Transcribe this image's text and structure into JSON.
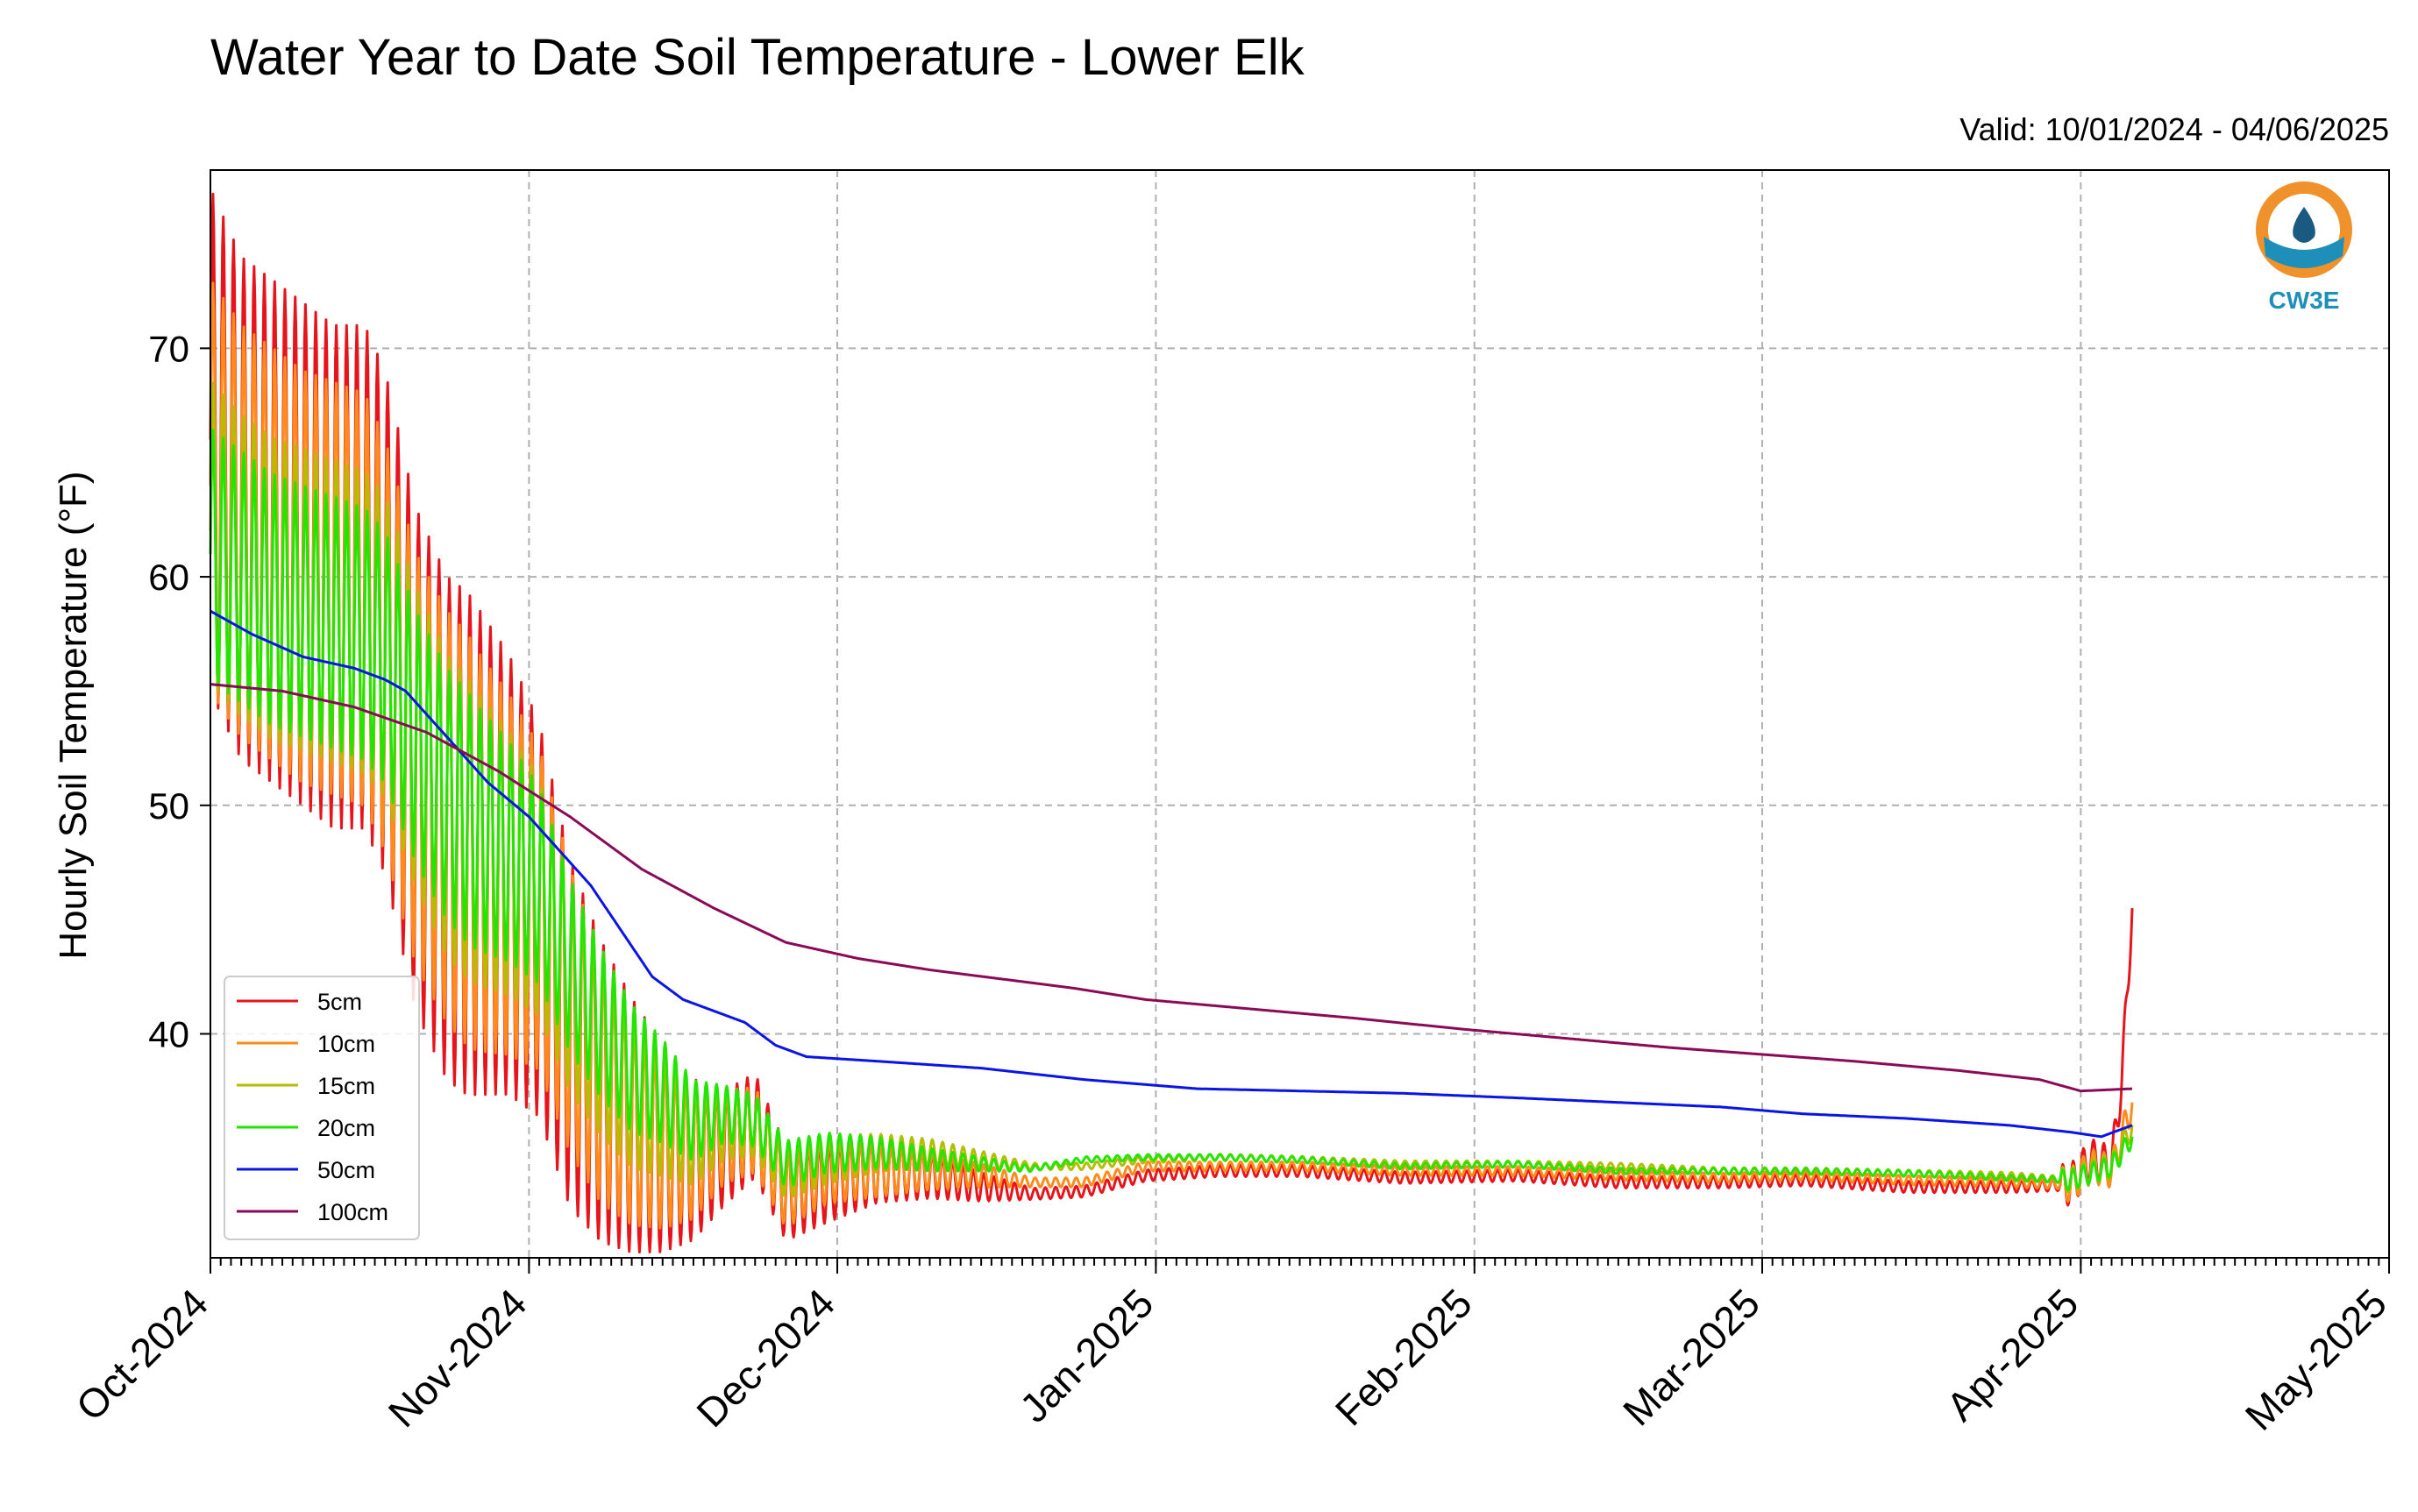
{
  "chart_data": {
    "type": "line",
    "title": "Water Year to Date Soil Temperature - Lower Elk",
    "subtitle": "Valid: 10/01/2024 - 04/06/2025",
    "ylabel": "Hourly Soil Temperature (°F)",
    "xlabel": "",
    "ylim": [
      30.2,
      77.8
    ],
    "yticks": [
      40,
      50,
      60,
      70
    ],
    "xlim": [
      "2024-10-01",
      "2025-05-01"
    ],
    "xticks": [
      "2024-10-01",
      "2024-11-01",
      "2024-12-01",
      "2025-01-01",
      "2025-02-01",
      "2025-03-01",
      "2025-04-01",
      "2025-05-01"
    ],
    "xtick_labels": [
      "Oct-2024",
      "Nov-2024",
      "Dec-2024",
      "Jan-2025",
      "Feb-2025",
      "Mar-2025",
      "Apr-2025",
      "May-2025"
    ],
    "grid": true,
    "legend_position": "lower-left",
    "logo_text": "CW3E",
    "logo_colors": {
      "orange": "#f0922b",
      "blue": "#1d8fb8",
      "dark": "#1a5a80"
    },
    "series": [
      {
        "name": "5cm",
        "color": "#e8141b",
        "x": [
          "2024-10-01",
          "2024-10-04",
          "2024-10-07",
          "2024-10-10",
          "2024-10-13",
          "2024-10-16",
          "2024-10-18",
          "2024-10-21",
          "2024-10-24",
          "2024-10-27",
          "2024-10-30",
          "2024-11-02",
          "2024-11-05",
          "2024-11-08",
          "2024-11-11",
          "2024-11-14",
          "2024-11-17",
          "2024-11-20",
          "2024-11-23",
          "2024-11-26",
          "2024-11-30",
          "2024-12-05",
          "2024-12-10",
          "2024-12-15",
          "2024-12-20",
          "2024-12-25",
          "2024-12-31",
          "2025-01-07",
          "2025-01-15",
          "2025-01-25",
          "2025-02-05",
          "2025-02-15",
          "2025-02-25",
          "2025-03-05",
          "2025-03-15",
          "2025-03-25",
          "2025-03-31",
          "2025-04-02",
          "2025-04-04",
          "2025-04-05",
          "2025-04-06"
        ],
        "values": [
          66,
          63,
          62,
          61,
          60,
          60,
          58,
          52,
          49,
          48,
          47,
          45,
          40,
          37.5,
          36,
          35,
          34.5,
          35,
          36,
          33,
          33.5,
          34,
          33.8,
          33.3,
          33,
          33.1,
          33.8,
          34,
          34,
          33.7,
          33.8,
          33.5,
          33.5,
          33.6,
          33.3,
          33.3,
          33.4,
          34.5,
          34.2,
          38,
          45.5
        ]
      },
      {
        "name": "10cm",
        "color": "#ff8c1a",
        "x": [
          "2024-10-01",
          "2024-10-04",
          "2024-10-07",
          "2024-10-10",
          "2024-10-13",
          "2024-10-16",
          "2024-10-18",
          "2024-10-21",
          "2024-10-24",
          "2024-10-27",
          "2024-10-30",
          "2024-11-02",
          "2024-11-05",
          "2024-11-08",
          "2024-11-11",
          "2024-11-14",
          "2024-11-17",
          "2024-11-20",
          "2024-11-23",
          "2024-11-26",
          "2024-11-30",
          "2024-12-05",
          "2024-12-10",
          "2024-12-15",
          "2024-12-20",
          "2024-12-25",
          "2024-12-31",
          "2025-01-07",
          "2025-01-15",
          "2025-01-25",
          "2025-02-05",
          "2025-02-15",
          "2025-02-25",
          "2025-03-05",
          "2025-03-15",
          "2025-03-25",
          "2025-03-31",
          "2025-04-02",
          "2025-04-04",
          "2025-04-05",
          "2025-04-06"
        ],
        "values": [
          64,
          62,
          61,
          60,
          59.5,
          59,
          57,
          52,
          49.5,
          48,
          47,
          45.5,
          41,
          38,
          36.2,
          35.2,
          34.8,
          35.5,
          35.8,
          33.2,
          34,
          34,
          34,
          33.8,
          33.5,
          33.5,
          34.2,
          34.2,
          34.2,
          34,
          34,
          33.8,
          33.7,
          33.8,
          33.6,
          33.5,
          33.4,
          34.2,
          34,
          35.5,
          37
        ]
      },
      {
        "name": "15cm",
        "color": "#b5bd00",
        "x": [
          "2024-10-01",
          "2024-10-04",
          "2024-10-07",
          "2024-10-10",
          "2024-10-13",
          "2024-10-16",
          "2024-10-18",
          "2024-10-21",
          "2024-10-24",
          "2024-10-27",
          "2024-10-30",
          "2024-11-02",
          "2024-11-05",
          "2024-11-08",
          "2024-11-11",
          "2024-11-14",
          "2024-11-17",
          "2024-11-20",
          "2024-11-23",
          "2024-11-26",
          "2024-11-30",
          "2024-12-05",
          "2024-12-10",
          "2024-12-15",
          "2024-12-20",
          "2024-12-25",
          "2024-12-31",
          "2025-01-07",
          "2025-01-15",
          "2025-01-25",
          "2025-02-05",
          "2025-02-15",
          "2025-02-25",
          "2025-03-05",
          "2025-03-15",
          "2025-03-25",
          "2025-03-31",
          "2025-04-02",
          "2025-04-04",
          "2025-04-05",
          "2025-04-06"
        ],
        "values": [
          62,
          60.5,
          59.5,
          59,
          58.5,
          58,
          57,
          53,
          50,
          48.5,
          47.5,
          46,
          42,
          39.5,
          37.5,
          36.5,
          35.5,
          36,
          36,
          34,
          34.5,
          34.8,
          34.8,
          34.5,
          34.2,
          34.2,
          34.5,
          34.6,
          34.5,
          34.3,
          34.3,
          34.2,
          34,
          34,
          33.9,
          33.8,
          33.6,
          34,
          34.2,
          35,
          36
        ]
      },
      {
        "name": "20cm",
        "color": "#22e600",
        "x": [
          "2024-10-01",
          "2024-10-04",
          "2024-10-07",
          "2024-10-10",
          "2024-10-13",
          "2024-10-16",
          "2024-10-18",
          "2024-10-21",
          "2024-10-24",
          "2024-10-27",
          "2024-10-30",
          "2024-11-02",
          "2024-11-05",
          "2024-11-08",
          "2024-11-11",
          "2024-11-14",
          "2024-11-17",
          "2024-11-20",
          "2024-11-23",
          "2024-11-26",
          "2024-11-30",
          "2024-12-05",
          "2024-12-10",
          "2024-12-15",
          "2024-12-20",
          "2024-12-25",
          "2024-12-31",
          "2025-01-07",
          "2025-01-15",
          "2025-01-25",
          "2025-02-05",
          "2025-02-15",
          "2025-02-25",
          "2025-03-05",
          "2025-03-15",
          "2025-03-25",
          "2025-03-31",
          "2025-04-02",
          "2025-04-04",
          "2025-04-05",
          "2025-04-06"
        ],
        "values": [
          61,
          60,
          59,
          58.5,
          58,
          57.5,
          56.5,
          53,
          50.5,
          49,
          48,
          46.5,
          43,
          40.5,
          38.5,
          37.5,
          36.2,
          36.5,
          36.2,
          34.3,
          34.8,
          34.8,
          34.5,
          34.3,
          34.1,
          34.5,
          34.6,
          34.6,
          34.5,
          34.2,
          34.3,
          34,
          34,
          34,
          33.9,
          33.7,
          33.6,
          33.9,
          34.2,
          34.8,
          35.5
        ]
      },
      {
        "name": "50cm",
        "color": "#0a14e6",
        "x": [
          "2024-10-01",
          "2024-10-05",
          "2024-10-10",
          "2024-10-15",
          "2024-10-18",
          "2024-10-20",
          "2024-10-22",
          "2024-10-25",
          "2024-10-28",
          "2024-11-01",
          "2024-11-04",
          "2024-11-07",
          "2024-11-10",
          "2024-11-13",
          "2024-11-16",
          "2024-11-19",
          "2024-11-22",
          "2024-11-25",
          "2024-11-28",
          "2024-12-05",
          "2024-12-15",
          "2024-12-25",
          "2025-01-05",
          "2025-01-15",
          "2025-01-25",
          "2025-02-05",
          "2025-02-15",
          "2025-02-25",
          "2025-03-05",
          "2025-03-15",
          "2025-03-25",
          "2025-03-31",
          "2025-04-03",
          "2025-04-06"
        ],
        "values": [
          58.5,
          57.5,
          56.5,
          56,
          55.5,
          55,
          54,
          52.5,
          51,
          49.5,
          48,
          46.5,
          44.5,
          42.5,
          41.5,
          41,
          40.5,
          39.5,
          39,
          38.8,
          38.5,
          38,
          37.6,
          37.5,
          37.4,
          37.2,
          37,
          36.8,
          36.5,
          36.3,
          36,
          35.7,
          35.5,
          36
        ]
      },
      {
        "name": "100cm",
        "color": "#8b0a57",
        "x": [
          "2024-10-01",
          "2024-10-08",
          "2024-10-15",
          "2024-10-22",
          "2024-10-29",
          "2024-11-05",
          "2024-11-12",
          "2024-11-19",
          "2024-11-26",
          "2024-12-03",
          "2024-12-10",
          "2024-12-17",
          "2024-12-24",
          "2024-12-31",
          "2025-01-10",
          "2025-01-20",
          "2025-01-31",
          "2025-02-10",
          "2025-02-20",
          "2025-03-01",
          "2025-03-10",
          "2025-03-20",
          "2025-03-28",
          "2025-04-01",
          "2025-04-06"
        ],
        "values": [
          55.3,
          55,
          54.3,
          53.2,
          51.5,
          49.5,
          47.2,
          45.5,
          44,
          43.3,
          42.8,
          42.4,
          42,
          41.5,
          41.1,
          40.7,
          40.2,
          39.8,
          39.4,
          39.1,
          38.8,
          38.4,
          38,
          37.5,
          37.6
        ]
      }
    ]
  }
}
